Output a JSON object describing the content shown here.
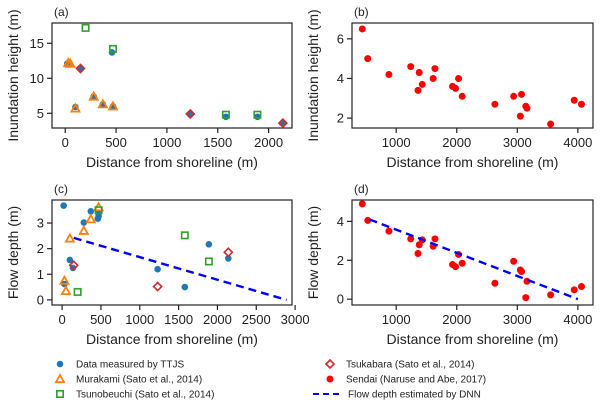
{
  "colors": {
    "ttjs": "#1f77b4",
    "murakami": "#ff7f0e",
    "tsunobeuchi": "#2ca02c",
    "tsukabara": "#d62728",
    "sendai": "#ff0000",
    "dnn": "#0000ff"
  },
  "legend": {
    "items": [
      {
        "key": "ttjs",
        "label": "Data measured by TTJS",
        "marker": "circle"
      },
      {
        "key": "murakami",
        "label": "Murakami (Sato et al., 2014)",
        "marker": "triangle"
      },
      {
        "key": "tsunobeuchi",
        "label": "Tsunobeuchi (Sato et al., 2014)",
        "marker": "square"
      },
      {
        "key": "tsukabara",
        "label": "Tsukabara (Sato et al., 2014)",
        "marker": "diamond"
      },
      {
        "key": "sendai",
        "label": "Sendai (Naruse and Abe, 2017)",
        "marker": "filled-circle"
      },
      {
        "key": "dnn",
        "label": "Flow depth estimated by DNN",
        "marker": "dashed-line"
      }
    ]
  },
  "chart_data": [
    {
      "id": "a",
      "type": "scatter",
      "panel_label": "(a)",
      "xlabel": "Distance from shoreline (m)",
      "ylabel": "Inundation height (m)",
      "xlim": [
        -130,
        2230
      ],
      "ylim": [
        2.9,
        17.9
      ],
      "xticks": [
        0,
        500,
        1000,
        1500,
        2000
      ],
      "yticks": [
        5,
        10,
        15
      ],
      "series": [
        {
          "name": "Data measured by TTJS",
          "key": "ttjs",
          "marker": "circle",
          "points": [
            [
              20,
              12.1
            ],
            [
              100,
              5.9
            ],
            [
              150,
              11.4
            ],
            [
              280,
              7.4
            ],
            [
              370,
              6.3
            ],
            [
              460,
              13.7
            ],
            [
              470,
              6.0
            ],
            [
              1230,
              4.9
            ],
            [
              1580,
              4.5
            ],
            [
              1890,
              4.5
            ],
            [
              2140,
              3.6
            ]
          ]
        },
        {
          "name": "Murakami (Sato et al., 2014)",
          "key": "murakami",
          "marker": "triangle",
          "points": [
            [
              30,
              12.2
            ],
            [
              50,
              12.1
            ],
            [
              100,
              5.7
            ],
            [
              280,
              7.4
            ],
            [
              370,
              6.3
            ],
            [
              470,
              6.0
            ]
          ]
        },
        {
          "name": "Tsunobeuchi (Sato et al., 2014)",
          "key": "tsunobeuchi",
          "marker": "square",
          "points": [
            [
              200,
              17.2
            ],
            [
              470,
              14.2
            ],
            [
              1580,
              4.8
            ],
            [
              1890,
              4.8
            ]
          ]
        },
        {
          "name": "Tsukabara (Sato et al., 2014)",
          "key": "tsukabara",
          "marker": "diamond",
          "points": [
            [
              150,
              11.4
            ],
            [
              1230,
              4.9
            ],
            [
              2140,
              3.6
            ]
          ]
        }
      ]
    },
    {
      "id": "b",
      "type": "scatter",
      "panel_label": "(b)",
      "xlabel": "Distance from shoreline (m)",
      "ylabel": "Inundation height (m)",
      "xlim": [
        270,
        4250
      ],
      "ylim": [
        1.5,
        6.8
      ],
      "xticks": [
        1000,
        2000,
        3000,
        4000
      ],
      "yticks": [
        2,
        4,
        6
      ],
      "series": [
        {
          "name": "Sendai (Naruse and Abe, 2017)",
          "key": "sendai",
          "marker": "filled-circle",
          "points": [
            [
              440,
              6.5
            ],
            [
              530,
              5.0
            ],
            [
              880,
              4.2
            ],
            [
              1240,
              4.6
            ],
            [
              1360,
              3.4
            ],
            [
              1380,
              4.3
            ],
            [
              1430,
              3.7
            ],
            [
              1610,
              4.0
            ],
            [
              1640,
              4.5
            ],
            [
              1930,
              3.6
            ],
            [
              1980,
              3.5
            ],
            [
              2030,
              4.0
            ],
            [
              2090,
              3.1
            ],
            [
              2630,
              2.7
            ],
            [
              2940,
              3.1
            ],
            [
              3050,
              2.1
            ],
            [
              3070,
              3.2
            ],
            [
              3140,
              2.6
            ],
            [
              3160,
              2.5
            ],
            [
              3550,
              1.7
            ],
            [
              3940,
              2.9
            ],
            [
              4060,
              2.7
            ]
          ]
        }
      ]
    },
    {
      "id": "c",
      "type": "scatter",
      "panel_label": "(c)",
      "xlabel": "Distance from shoreline (m)",
      "ylabel": "Flow depth (m)",
      "xlim": [
        -130,
        2960
      ],
      "ylim": [
        -0.2,
        3.9
      ],
      "xticks": [
        0,
        500,
        1000,
        1500,
        2000,
        2500,
        3000
      ],
      "yticks": [
        0,
        1,
        2,
        3
      ],
      "series": [
        {
          "name": "Data measured by TTJS",
          "key": "ttjs",
          "marker": "circle",
          "points": [
            [
              20,
              3.68
            ],
            [
              30,
              0.62
            ],
            [
              100,
              1.56
            ],
            [
              140,
              1.25
            ],
            [
              280,
              3.02
            ],
            [
              370,
              3.46
            ],
            [
              460,
              3.17
            ],
            [
              470,
              3.27
            ],
            [
              470,
              3.38
            ],
            [
              1230,
              1.2
            ],
            [
              1580,
              0.5
            ],
            [
              1890,
              2.17
            ],
            [
              2140,
              1.62
            ]
          ]
        },
        {
          "name": "Murakami (Sato et al., 2014)",
          "key": "murakami",
          "marker": "triangle",
          "points": [
            [
              30,
              0.75
            ],
            [
              50,
              0.35
            ],
            [
              100,
              2.4
            ],
            [
              280,
              2.7
            ],
            [
              370,
              3.15
            ],
            [
              470,
              3.62
            ]
          ]
        },
        {
          "name": "Tsunobeuchi (Sato et al., 2014)",
          "key": "tsunobeuchi",
          "marker": "square",
          "points": [
            [
              200,
              0.31
            ],
            [
              470,
              3.5
            ],
            [
              1580,
              2.52
            ],
            [
              1890,
              1.5
            ]
          ]
        },
        {
          "name": "Tsukabara (Sato et al., 2014)",
          "key": "tsukabara",
          "marker": "diamond",
          "points": [
            [
              150,
              1.35
            ],
            [
              1230,
              0.52
            ],
            [
              2140,
              1.86
            ]
          ]
        },
        {
          "name": "Flow depth estimated by DNN",
          "key": "dnn",
          "marker": "dashed-line",
          "points": [
            [
              150,
              2.42
            ],
            [
              2890,
              0.0
            ]
          ]
        }
      ]
    },
    {
      "id": "d",
      "type": "scatter",
      "panel_label": "(d)",
      "xlabel": "Distance from shoreline (m)",
      "ylabel": "Flow depth (m)",
      "xlim": [
        270,
        4250
      ],
      "ylim": [
        -0.3,
        5.1
      ],
      "xticks": [
        1000,
        2000,
        3000,
        4000
      ],
      "yticks": [
        0,
        2,
        4
      ],
      "series": [
        {
          "name": "Sendai (Naruse and Abe, 2017)",
          "key": "sendai",
          "marker": "filled-circle",
          "points": [
            [
              440,
              4.9
            ],
            [
              530,
              4.05
            ],
            [
              880,
              3.5
            ],
            [
              1240,
              3.1
            ],
            [
              1360,
              2.35
            ],
            [
              1380,
              2.8
            ],
            [
              1430,
              3.05
            ],
            [
              1610,
              2.72
            ],
            [
              1640,
              3.1
            ],
            [
              1930,
              1.78
            ],
            [
              1980,
              1.67
            ],
            [
              2030,
              2.3
            ],
            [
              2090,
              1.85
            ],
            [
              2630,
              0.82
            ],
            [
              2940,
              1.95
            ],
            [
              3050,
              1.5
            ],
            [
              3070,
              1.42
            ],
            [
              3140,
              0.08
            ],
            [
              3160,
              0.92
            ],
            [
              3550,
              0.22
            ],
            [
              3940,
              0.48
            ],
            [
              4060,
              0.65
            ]
          ]
        },
        {
          "name": "Flow depth estimated by DNN",
          "key": "dnn",
          "marker": "dashed-line",
          "points": [
            [
              560,
              4.1
            ],
            [
              4000,
              0.0
            ]
          ]
        }
      ]
    }
  ]
}
